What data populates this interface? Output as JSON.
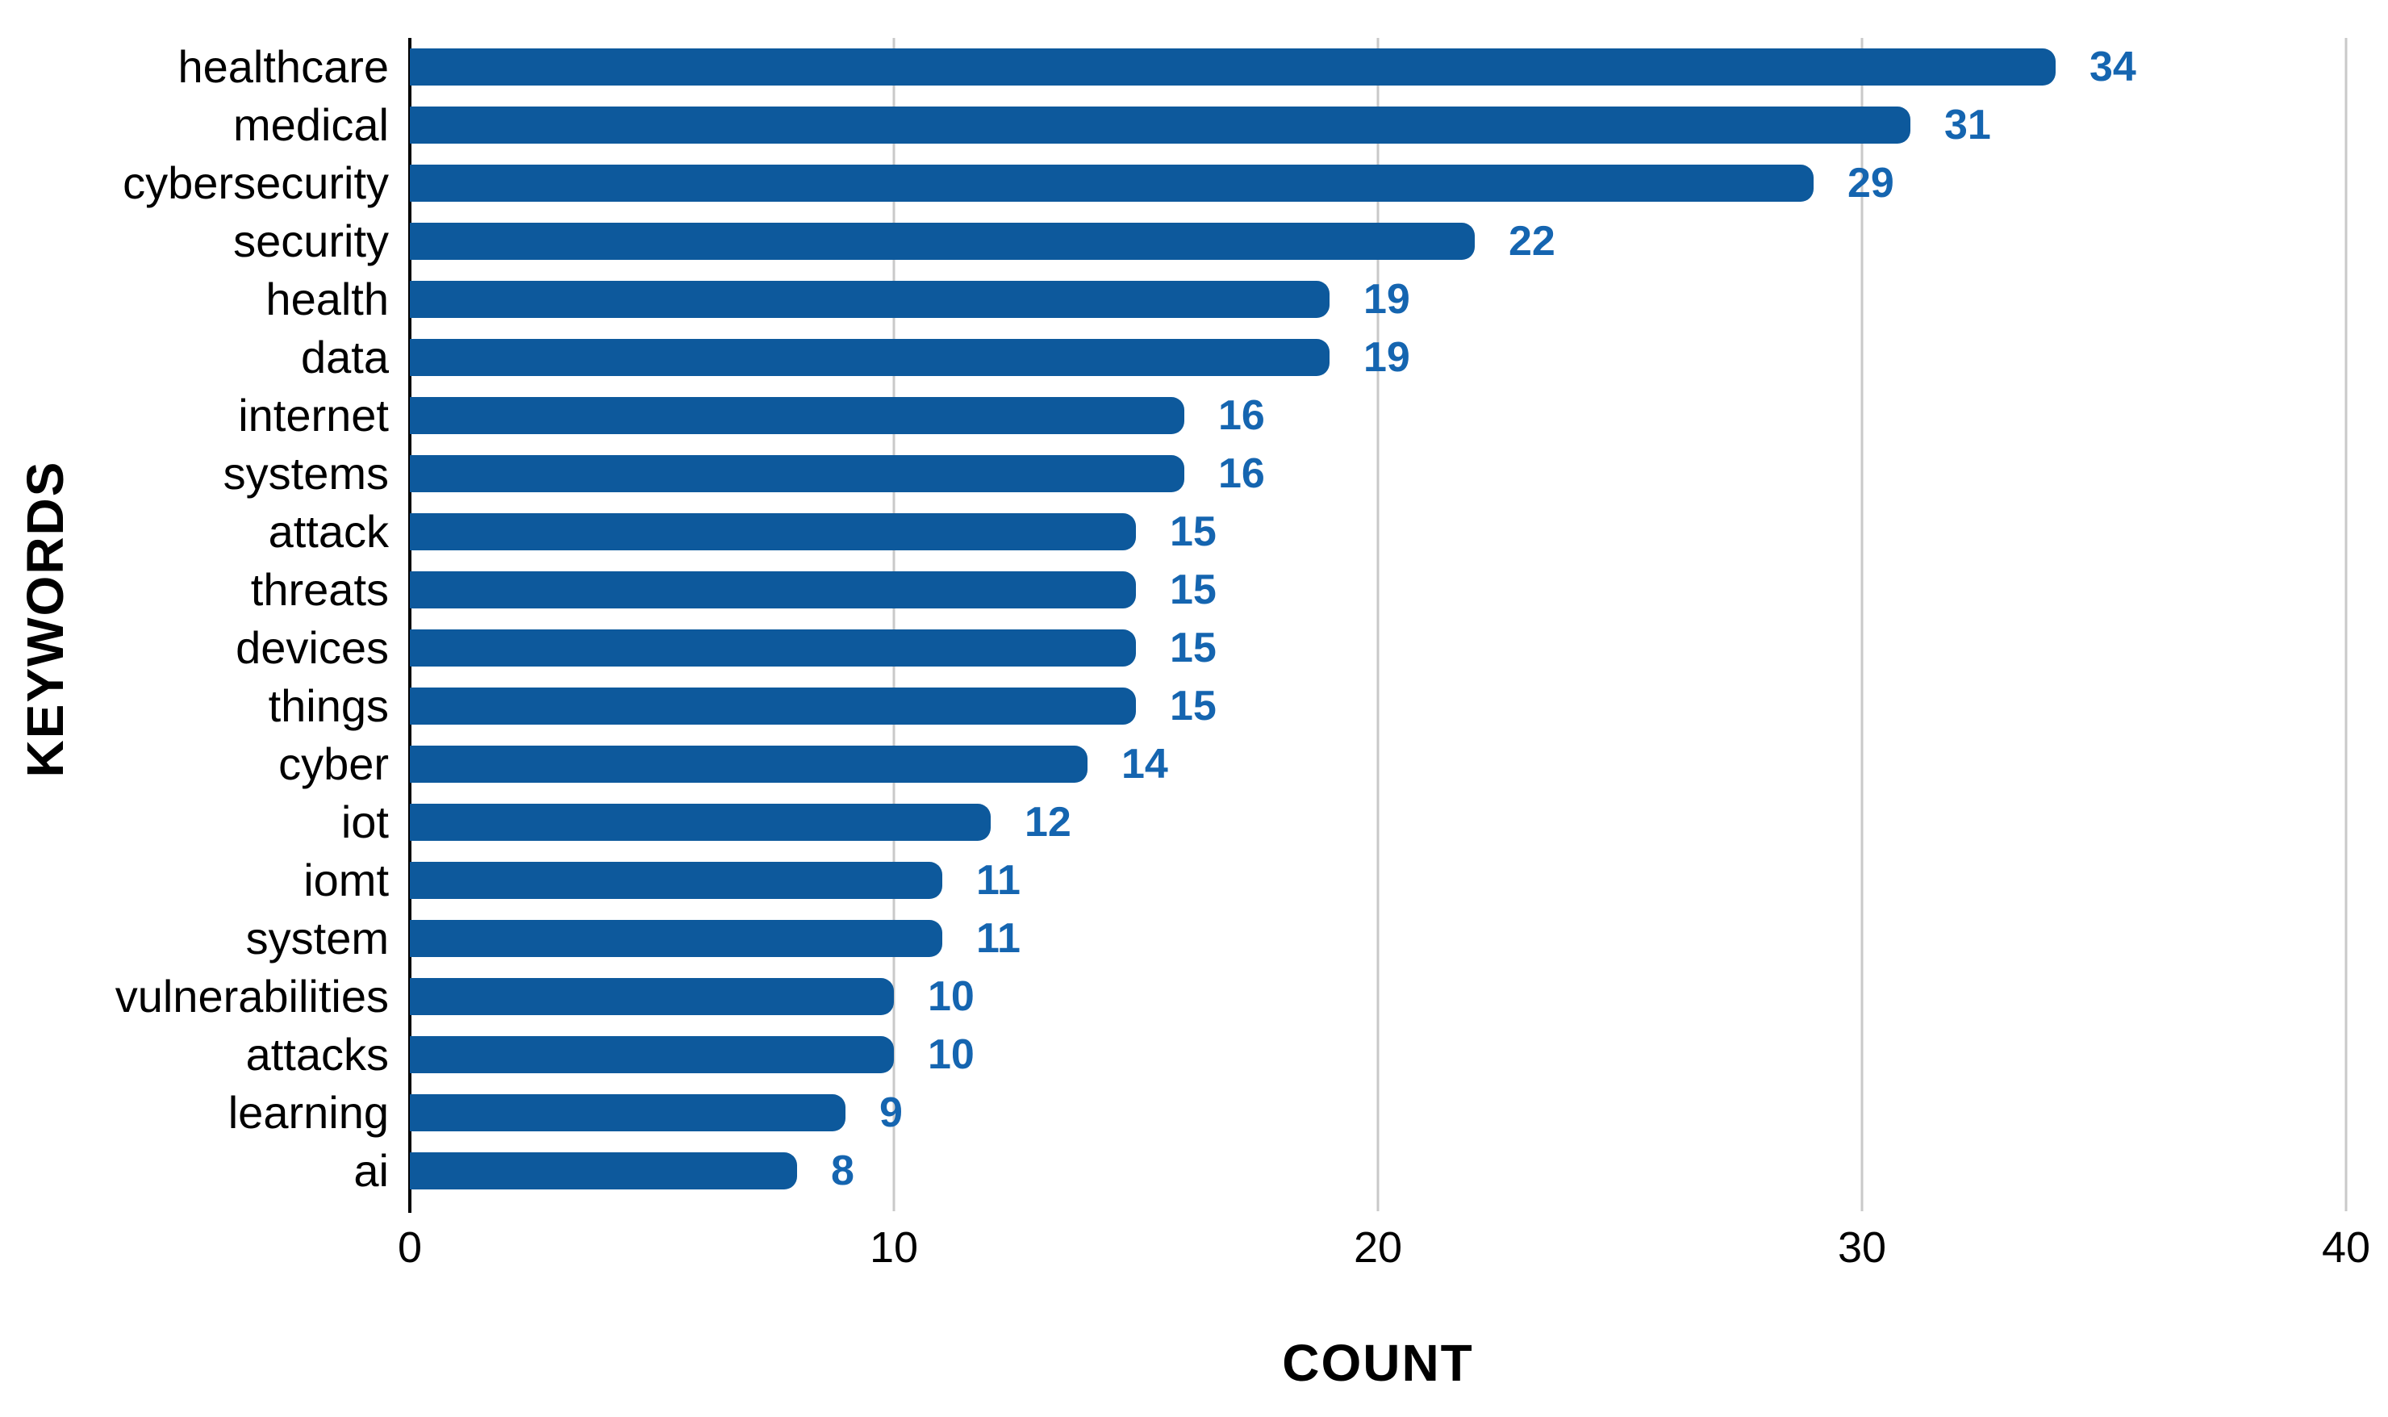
{
  "chart_data": {
    "type": "bar",
    "orientation": "horizontal",
    "title": "",
    "xlabel": "COUNT",
    "ylabel": "KEYWORDS",
    "xlim": [
      0,
      40
    ],
    "x_ticks": [
      "0",
      "10",
      "20",
      "30",
      "40"
    ],
    "grid": true,
    "legend": false,
    "categories": [
      "healthcare",
      "medical",
      "cybersecurity",
      "security",
      "health",
      "data",
      "internet",
      "systems",
      "attack",
      "threats",
      "devices",
      "things",
      "cyber",
      "iot",
      "iomt",
      "system",
      "vulnerabilities",
      "attacks",
      "learning",
      "ai"
    ],
    "values": [
      34,
      31,
      29,
      22,
      19,
      19,
      16,
      16,
      15,
      15,
      15,
      15,
      14,
      12,
      11,
      11,
      10,
      10,
      9,
      8
    ],
    "colors": {
      "bar": "#0d599c",
      "value_label": "#1565b0",
      "grid_line": "#c9c9c9",
      "axis_line": "#000000",
      "text": "#000000",
      "background": "#ffffff"
    }
  }
}
